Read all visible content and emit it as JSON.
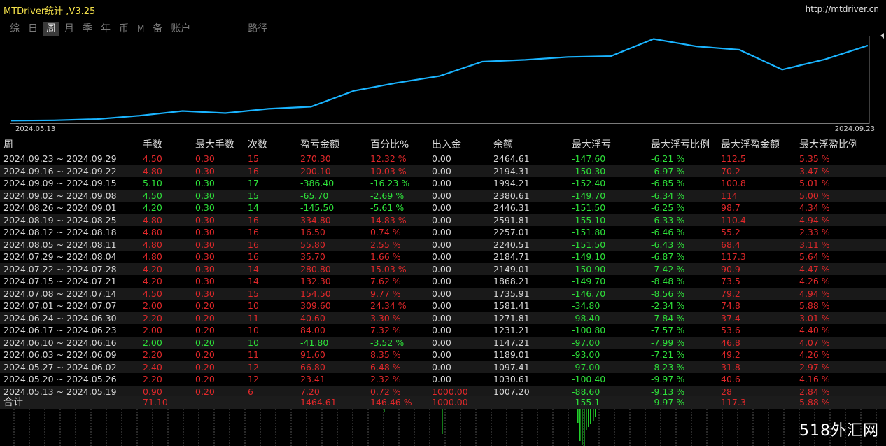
{
  "app": {
    "title": "MTDriver统计 ,V3.25",
    "url": "http://mtdriver.cn",
    "watermark": "518外汇网"
  },
  "tabs": [
    {
      "label": "综",
      "active": false
    },
    {
      "label": "日",
      "active": false
    },
    {
      "label": "周",
      "active": true
    },
    {
      "label": "月",
      "active": false
    },
    {
      "label": "季",
      "active": false
    },
    {
      "label": "年",
      "active": false
    },
    {
      "label": "币",
      "active": false
    },
    {
      "label": "M",
      "active": false
    },
    {
      "label": "备",
      "active": false
    },
    {
      "label": "账户",
      "active": false
    },
    {
      "label": "路径",
      "active": false
    }
  ],
  "chart": {
    "start_date": "2024.05.13",
    "end_date": "2024.09.23",
    "line_color": "#1ab4ff",
    "balances": [
      1007.2,
      1030.61,
      1097.41,
      1189.01,
      1147.21,
      1231.21,
      1271.81,
      1581.41,
      1735.91,
      1868.21,
      2149.01,
      2184.71,
      2240.51,
      2257.01,
      2591.81,
      2446.31,
      2380.61,
      1994.21,
      2194.31,
      2464.61
    ]
  },
  "table": {
    "headers": [
      "周",
      "手数",
      "最大手数",
      "次数",
      "盈亏金额",
      "百分比%",
      "出入金",
      "余额",
      "最大浮亏",
      "最大浮亏比例",
      "最大浮盈金额",
      "最大浮盈比例"
    ],
    "rows": [
      [
        "2024.09.23 ~ 2024.09.29",
        "4.50",
        "0.30",
        "15",
        "270.30",
        "12.32 %",
        "0.00",
        "2464.61",
        "-147.60",
        "-6.21 %",
        "112.5",
        "5.35 %"
      ],
      [
        "2024.09.16 ~ 2024.09.22",
        "4.80",
        "0.30",
        "16",
        "200.10",
        "10.03 %",
        "0.00",
        "2194.31",
        "-150.30",
        "-6.97 %",
        "70.2",
        "3.47 %"
      ],
      [
        "2024.09.09 ~ 2024.09.15",
        "5.10",
        "0.30",
        "17",
        "-386.40",
        "-16.23 %",
        "0.00",
        "1994.21",
        "-152.40",
        "-6.85 %",
        "100.8",
        "5.01 %"
      ],
      [
        "2024.09.02 ~ 2024.09.08",
        "4.50",
        "0.30",
        "15",
        "-65.70",
        "-2.69 %",
        "0.00",
        "2380.61",
        "-149.70",
        "-6.34 %",
        "114",
        "5.00 %"
      ],
      [
        "2024.08.26 ~ 2024.09.01",
        "4.20",
        "0.30",
        "14",
        "-145.50",
        "-5.61 %",
        "0.00",
        "2446.31",
        "-151.50",
        "-6.25 %",
        "98.7",
        "4.34 %"
      ],
      [
        "2024.08.19 ~ 2024.08.25",
        "4.80",
        "0.30",
        "16",
        "334.80",
        "14.83 %",
        "0.00",
        "2591.81",
        "-155.10",
        "-6.33 %",
        "110.4",
        "4.94 %"
      ],
      [
        "2024.08.12 ~ 2024.08.18",
        "4.80",
        "0.30",
        "16",
        "16.50",
        "0.74 %",
        "0.00",
        "2257.01",
        "-151.80",
        "-6.46 %",
        "55.2",
        "2.33 %"
      ],
      [
        "2024.08.05 ~ 2024.08.11",
        "4.80",
        "0.30",
        "16",
        "55.80",
        "2.55 %",
        "0.00",
        "2240.51",
        "-151.50",
        "-6.43 %",
        "68.4",
        "3.11 %"
      ],
      [
        "2024.07.29 ~ 2024.08.04",
        "4.80",
        "0.30",
        "16",
        "35.70",
        "1.66 %",
        "0.00",
        "2184.71",
        "-149.10",
        "-6.87 %",
        "117.3",
        "5.64 %"
      ],
      [
        "2024.07.22 ~ 2024.07.28",
        "4.20",
        "0.30",
        "14",
        "280.80",
        "15.03 %",
        "0.00",
        "2149.01",
        "-150.90",
        "-7.42 %",
        "90.9",
        "4.47 %"
      ],
      [
        "2024.07.15 ~ 2024.07.21",
        "4.20",
        "0.30",
        "14",
        "132.30",
        "7.62 %",
        "0.00",
        "1868.21",
        "-149.70",
        "-8.48 %",
        "73.5",
        "4.26 %"
      ],
      [
        "2024.07.08 ~ 2024.07.14",
        "4.50",
        "0.30",
        "15",
        "154.50",
        "9.77 %",
        "0.00",
        "1735.91",
        "-146.70",
        "-8.56 %",
        "79.2",
        "4.94 %"
      ],
      [
        "2024.07.01 ~ 2024.07.07",
        "2.00",
        "0.20",
        "10",
        "309.60",
        "24.34 %",
        "0.00",
        "1581.41",
        "-34.80",
        "-2.34 %",
        "74.8",
        "5.88 %"
      ],
      [
        "2024.06.24 ~ 2024.06.30",
        "2.20",
        "0.20",
        "11",
        "40.60",
        "3.30 %",
        "0.00",
        "1271.81",
        "-98.40",
        "-7.84 %",
        "37.4",
        "3.01 %"
      ],
      [
        "2024.06.17 ~ 2024.06.23",
        "2.00",
        "0.20",
        "10",
        "84.00",
        "7.32 %",
        "0.00",
        "1231.21",
        "-100.80",
        "-7.57 %",
        "53.6",
        "4.40 %"
      ],
      [
        "2024.06.10 ~ 2024.06.16",
        "2.00",
        "0.20",
        "10",
        "-41.80",
        "-3.52 %",
        "0.00",
        "1147.21",
        "-97.00",
        "-7.99 %",
        "46.8",
        "4.07 %"
      ],
      [
        "2024.06.03 ~ 2024.06.09",
        "2.20",
        "0.20",
        "11",
        "91.60",
        "8.35 %",
        "0.00",
        "1189.01",
        "-93.00",
        "-7.21 %",
        "49.2",
        "4.26 %"
      ],
      [
        "2024.05.27 ~ 2024.06.02",
        "2.40",
        "0.20",
        "12",
        "66.80",
        "6.48 %",
        "0.00",
        "1097.41",
        "-97.00",
        "-8.23 %",
        "31.8",
        "2.97 %"
      ],
      [
        "2024.05.20 ~ 2024.05.26",
        "2.20",
        "0.20",
        "12",
        "23.41",
        "2.32 %",
        "0.00",
        "1030.61",
        "-100.40",
        "-9.97 %",
        "40.6",
        "4.16 %"
      ],
      [
        "2024.05.13 ~ 2024.05.19",
        "0.90",
        "0.20",
        "6",
        "7.20",
        "0.72 %",
        "1000.00",
        "1007.20",
        "-88.60",
        "-9.13 %",
        "28",
        "2.84 %"
      ]
    ],
    "total": [
      "合计",
      "71.10",
      "",
      "",
      "1464.61",
      "146.46 %",
      "1000.00",
      "",
      "-155.1",
      "-9.97 %",
      "117.3",
      "5.88 %"
    ]
  },
  "colors": {
    "profit": "#e0282a",
    "loss": "#2ee03a",
    "neutral": "#d6d6d6",
    "title": "#f4e14a"
  }
}
